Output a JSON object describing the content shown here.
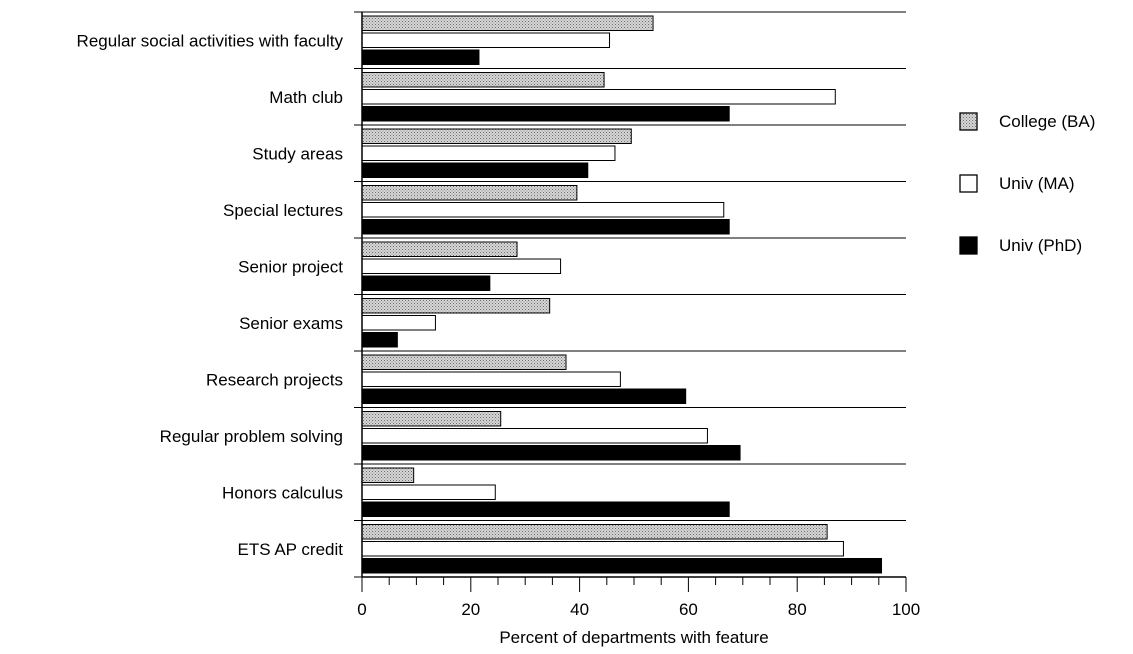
{
  "chart_data": {
    "type": "bar",
    "orientation": "horizontal",
    "xlabel": "Percent of departments with feature",
    "xlim": [
      0,
      100
    ],
    "xticks": [
      "0",
      "20",
      "40",
      "60",
      "80",
      "100"
    ],
    "grid": "horizontal separators between categories",
    "legend_position": "right",
    "categories": [
      "Regular social activities with faculty",
      "Math club",
      "Study areas",
      "Special lectures",
      "Senior project",
      "Senior exams",
      "Research projects",
      "Regular problem solving",
      "Honors calculus",
      "ETS AP credit"
    ],
    "series": [
      {
        "name": "College (BA)",
        "pattern": "stipple",
        "color": "#b8b8b8",
        "values": [
          53.5,
          44.5,
          49.5,
          39.5,
          28.5,
          34.5,
          37.5,
          25.5,
          9.5,
          85.5
        ]
      },
      {
        "name": "Univ (MA)",
        "pattern": "outline",
        "color": "#ffffff",
        "values": [
          45.5,
          87,
          46.5,
          66.5,
          36.5,
          13.5,
          47.5,
          63.5,
          24.5,
          88.5
        ]
      },
      {
        "name": "Univ (PhD)",
        "pattern": "solid",
        "color": "#000000",
        "values": [
          21.5,
          67.5,
          41.5,
          67.5,
          23.5,
          6.5,
          59.5,
          69.5,
          67.5,
          95.5
        ]
      }
    ]
  }
}
